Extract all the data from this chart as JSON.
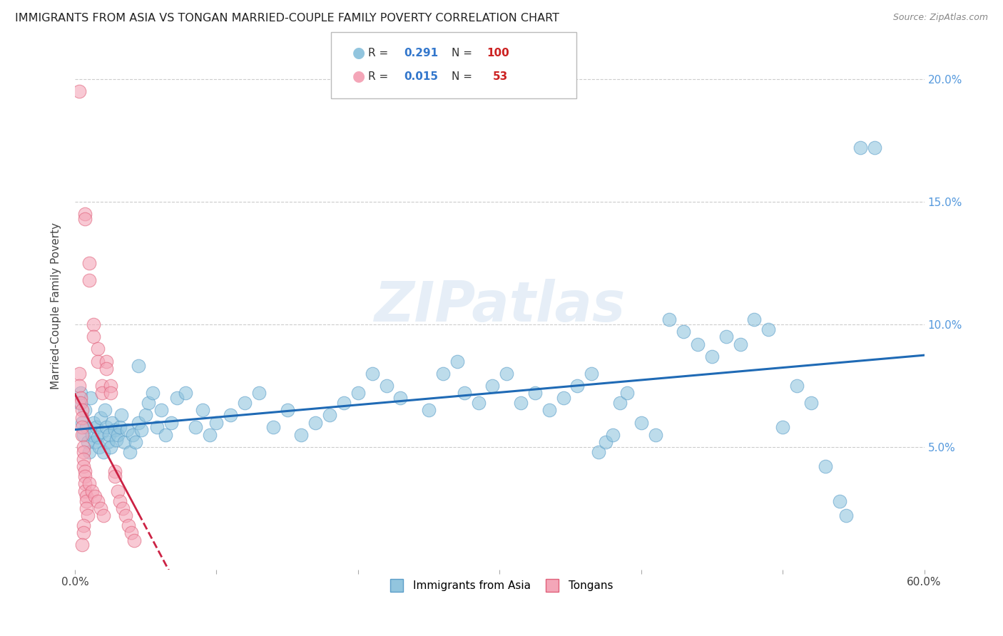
{
  "title": "IMMIGRANTS FROM ASIA VS TONGAN MARRIED-COUPLE FAMILY POVERTY CORRELATION CHART",
  "source": "Source: ZipAtlas.com",
  "ylabel": "Married-Couple Family Poverty",
  "xlim": [
    0.0,
    0.6
  ],
  "ylim": [
    0.0,
    0.215
  ],
  "yticks": [
    0.0,
    0.05,
    0.1,
    0.15,
    0.2
  ],
  "ytick_labels_right": [
    "",
    "5.0%",
    "10.0%",
    "15.0%",
    "20.0%"
  ],
  "xtick_vals": [
    0.0,
    0.6
  ],
  "xtick_labels": [
    "0.0%",
    "60.0%"
  ],
  "legend1_r": "0.291",
  "legend1_n": "100",
  "legend2_r": "0.015",
  "legend2_n": "53",
  "blue_color": "#92c5de",
  "blue_edge": "#5b9ec9",
  "pink_color": "#f4a6b8",
  "pink_edge": "#e0607a",
  "blue_line_color": "#1f6ab5",
  "pink_line_color": "#cc2244",
  "watermark": "ZIPatlas",
  "blue_points": [
    [
      0.003,
      0.068
    ],
    [
      0.004,
      0.072
    ],
    [
      0.005,
      0.06
    ],
    [
      0.006,
      0.055
    ],
    [
      0.007,
      0.065
    ],
    [
      0.008,
      0.058
    ],
    [
      0.009,
      0.052
    ],
    [
      0.01,
      0.048
    ],
    [
      0.011,
      0.07
    ],
    [
      0.012,
      0.055
    ],
    [
      0.013,
      0.06
    ],
    [
      0.014,
      0.052
    ],
    [
      0.015,
      0.058
    ],
    [
      0.016,
      0.054
    ],
    [
      0.017,
      0.05
    ],
    [
      0.018,
      0.062
    ],
    [
      0.019,
      0.056
    ],
    [
      0.02,
      0.048
    ],
    [
      0.021,
      0.065
    ],
    [
      0.022,
      0.058
    ],
    [
      0.023,
      0.052
    ],
    [
      0.024,
      0.055
    ],
    [
      0.025,
      0.05
    ],
    [
      0.026,
      0.06
    ],
    [
      0.028,
      0.057
    ],
    [
      0.029,
      0.053
    ],
    [
      0.03,
      0.055
    ],
    [
      0.032,
      0.058
    ],
    [
      0.033,
      0.063
    ],
    [
      0.035,
      0.052
    ],
    [
      0.037,
      0.057
    ],
    [
      0.039,
      0.048
    ],
    [
      0.041,
      0.055
    ],
    [
      0.043,
      0.052
    ],
    [
      0.045,
      0.06
    ],
    [
      0.047,
      0.057
    ],
    [
      0.05,
      0.063
    ],
    [
      0.052,
      0.068
    ],
    [
      0.055,
      0.072
    ],
    [
      0.058,
      0.058
    ],
    [
      0.061,
      0.065
    ],
    [
      0.064,
      0.055
    ],
    [
      0.068,
      0.06
    ],
    [
      0.072,
      0.07
    ],
    [
      0.078,
      0.072
    ],
    [
      0.085,
      0.058
    ],
    [
      0.09,
      0.065
    ],
    [
      0.095,
      0.055
    ],
    [
      0.1,
      0.06
    ],
    [
      0.11,
      0.063
    ],
    [
      0.12,
      0.068
    ],
    [
      0.13,
      0.072
    ],
    [
      0.14,
      0.058
    ],
    [
      0.15,
      0.065
    ],
    [
      0.16,
      0.055
    ],
    [
      0.17,
      0.06
    ],
    [
      0.18,
      0.063
    ],
    [
      0.19,
      0.068
    ],
    [
      0.2,
      0.072
    ],
    [
      0.21,
      0.08
    ],
    [
      0.22,
      0.075
    ],
    [
      0.23,
      0.07
    ],
    [
      0.25,
      0.065
    ],
    [
      0.26,
      0.08
    ],
    [
      0.27,
      0.085
    ],
    [
      0.275,
      0.072
    ],
    [
      0.285,
      0.068
    ],
    [
      0.295,
      0.075
    ],
    [
      0.305,
      0.08
    ],
    [
      0.315,
      0.068
    ],
    [
      0.325,
      0.072
    ],
    [
      0.335,
      0.065
    ],
    [
      0.345,
      0.07
    ],
    [
      0.355,
      0.075
    ],
    [
      0.365,
      0.08
    ],
    [
      0.37,
      0.048
    ],
    [
      0.375,
      0.052
    ],
    [
      0.38,
      0.055
    ],
    [
      0.385,
      0.068
    ],
    [
      0.39,
      0.072
    ],
    [
      0.4,
      0.06
    ],
    [
      0.41,
      0.055
    ],
    [
      0.045,
      0.083
    ],
    [
      0.42,
      0.102
    ],
    [
      0.43,
      0.097
    ],
    [
      0.44,
      0.092
    ],
    [
      0.45,
      0.087
    ],
    [
      0.46,
      0.095
    ],
    [
      0.47,
      0.092
    ],
    [
      0.48,
      0.102
    ],
    [
      0.49,
      0.098
    ],
    [
      0.5,
      0.058
    ],
    [
      0.51,
      0.075
    ],
    [
      0.52,
      0.068
    ],
    [
      0.53,
      0.042
    ],
    [
      0.54,
      0.028
    ],
    [
      0.545,
      0.022
    ],
    [
      0.555,
      0.172
    ],
    [
      0.565,
      0.172
    ]
  ],
  "pink_points": [
    [
      0.003,
      0.195
    ],
    [
      0.007,
      0.145
    ],
    [
      0.007,
      0.143
    ],
    [
      0.01,
      0.125
    ],
    [
      0.01,
      0.118
    ],
    [
      0.013,
      0.1
    ],
    [
      0.013,
      0.095
    ],
    [
      0.016,
      0.09
    ],
    [
      0.016,
      0.085
    ],
    [
      0.019,
      0.075
    ],
    [
      0.019,
      0.072
    ],
    [
      0.022,
      0.085
    ],
    [
      0.022,
      0.082
    ],
    [
      0.025,
      0.075
    ],
    [
      0.025,
      0.072
    ],
    [
      0.003,
      0.08
    ],
    [
      0.003,
      0.075
    ],
    [
      0.004,
      0.07
    ],
    [
      0.004,
      0.068
    ],
    [
      0.005,
      0.065
    ],
    [
      0.005,
      0.062
    ],
    [
      0.005,
      0.058
    ],
    [
      0.005,
      0.055
    ],
    [
      0.006,
      0.05
    ],
    [
      0.006,
      0.048
    ],
    [
      0.006,
      0.045
    ],
    [
      0.006,
      0.042
    ],
    [
      0.007,
      0.04
    ],
    [
      0.007,
      0.038
    ],
    [
      0.007,
      0.035
    ],
    [
      0.007,
      0.032
    ],
    [
      0.008,
      0.03
    ],
    [
      0.008,
      0.028
    ],
    [
      0.008,
      0.025
    ],
    [
      0.009,
      0.022
    ],
    [
      0.01,
      0.035
    ],
    [
      0.012,
      0.032
    ],
    [
      0.014,
      0.03
    ],
    [
      0.016,
      0.028
    ],
    [
      0.018,
      0.025
    ],
    [
      0.02,
      0.022
    ],
    [
      0.028,
      0.04
    ],
    [
      0.028,
      0.038
    ],
    [
      0.03,
      0.032
    ],
    [
      0.032,
      0.028
    ],
    [
      0.034,
      0.025
    ],
    [
      0.036,
      0.022
    ],
    [
      0.038,
      0.018
    ],
    [
      0.04,
      0.015
    ],
    [
      0.042,
      0.012
    ],
    [
      0.006,
      0.018
    ],
    [
      0.006,
      0.015
    ],
    [
      0.005,
      0.01
    ]
  ]
}
